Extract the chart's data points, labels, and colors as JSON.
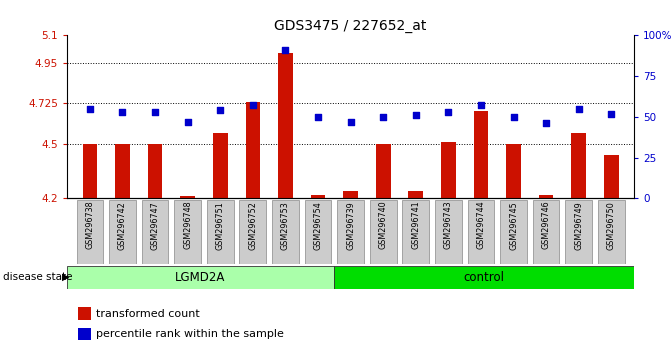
{
  "title": "GDS3475 / 227652_at",
  "samples": [
    "GSM296738",
    "GSM296742",
    "GSM296747",
    "GSM296748",
    "GSM296751",
    "GSM296752",
    "GSM296753",
    "GSM296754",
    "GSM296739",
    "GSM296740",
    "GSM296741",
    "GSM296743",
    "GSM296744",
    "GSM296745",
    "GSM296746",
    "GSM296749",
    "GSM296750"
  ],
  "bar_values": [
    4.5,
    4.5,
    4.5,
    4.21,
    4.56,
    4.73,
    5.0,
    4.22,
    4.24,
    4.5,
    4.24,
    4.51,
    4.68,
    4.5,
    4.22,
    4.56,
    4.44
  ],
  "dot_values": [
    55,
    53,
    53,
    47,
    54,
    57,
    91,
    50,
    47,
    50,
    51,
    53,
    57,
    50,
    46,
    55,
    52
  ],
  "groups": [
    {
      "label": "LGMD2A",
      "start": 0,
      "end": 8,
      "color": "#AAFFAA"
    },
    {
      "label": "control",
      "start": 8,
      "end": 17,
      "color": "#00DD00"
    }
  ],
  "ylim_left": [
    4.2,
    5.1
  ],
  "ylim_right": [
    0,
    100
  ],
  "yticks_left": [
    4.2,
    4.5,
    4.725,
    4.95,
    5.1
  ],
  "yticks_left_labels": [
    "4.2",
    "4.5",
    "4.725",
    "4.95",
    "5.1"
  ],
  "yticks_right": [
    0,
    25,
    50,
    75,
    100
  ],
  "yticks_right_labels": [
    "0",
    "25",
    "50",
    "75",
    "100%"
  ],
  "hlines": [
    4.5,
    4.725,
    4.95
  ],
  "bar_color": "#CC1100",
  "dot_color": "#0000CC",
  "bar_width": 0.45,
  "disease_state_label": "disease state",
  "legend_items": [
    "transformed count",
    "percentile rank within the sample"
  ],
  "n_lgmd": 8,
  "n_control": 9
}
